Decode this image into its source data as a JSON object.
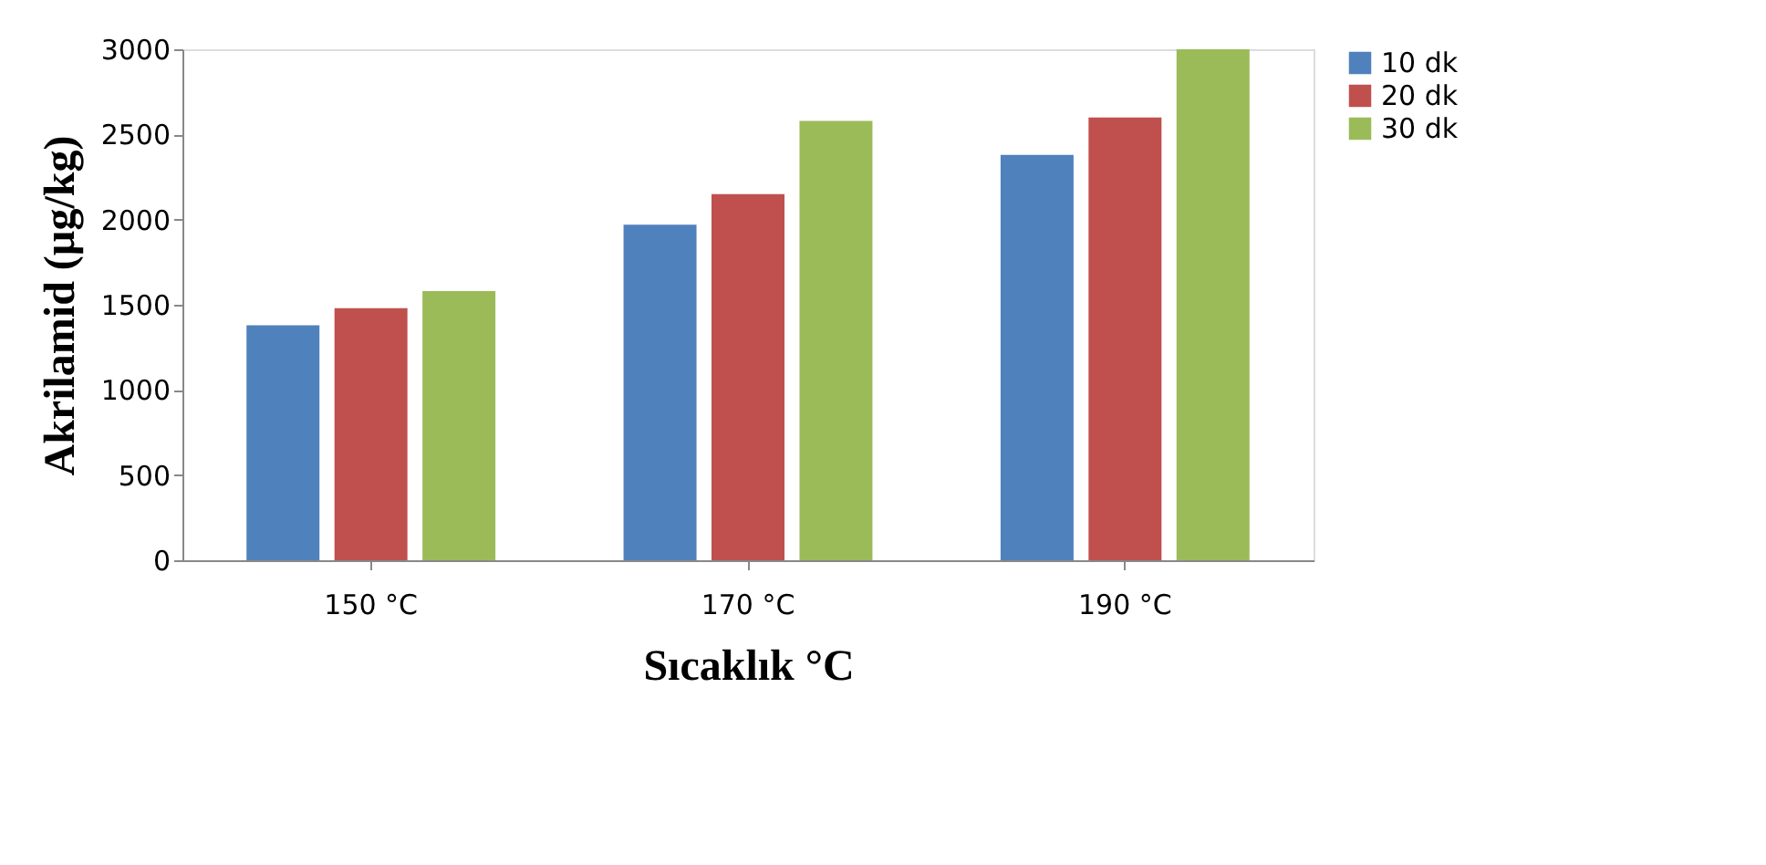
{
  "chart_data": {
    "type": "bar",
    "xlabel": "Sıcaklık °C",
    "ylabel": "Akrilamid (µg/kg)",
    "categories": [
      "150 °C",
      "170 °C",
      "190 °C"
    ],
    "series": [
      {
        "name": "10 dk",
        "color": "#4f81bd",
        "values": [
          1380,
          1970,
          2380
        ]
      },
      {
        "name": "20 dk",
        "color": "#c0504d",
        "values": [
          1480,
          2150,
          2600
        ]
      },
      {
        "name": "30 dk",
        "color": "#9bbb59",
        "values": [
          1580,
          2580,
          3000
        ]
      }
    ],
    "ylim": [
      0,
      3000
    ],
    "yticks": [
      0,
      500,
      1000,
      1500,
      2000,
      2500,
      3000
    ],
    "grid": false,
    "legend": "right"
  }
}
